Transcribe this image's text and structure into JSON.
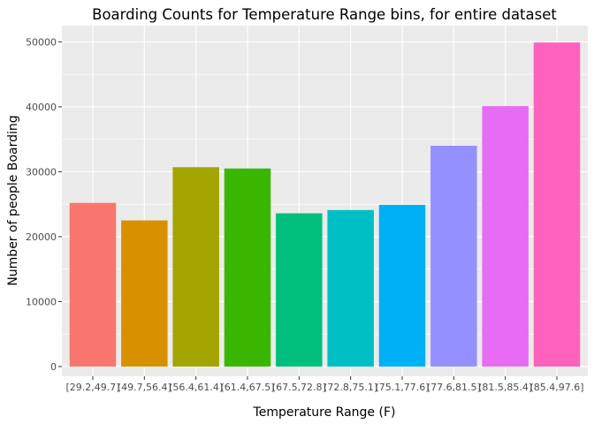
{
  "chart_data": {
    "type": "bar",
    "title": "Boarding Counts for Temperature Range bins, for entire dataset",
    "xlabel": "Temperature Range (F)",
    "ylabel": "Number of people Boarding",
    "categories": [
      "[29.2,49.7]",
      "(49.7,56.4]",
      "(56.4,61.4]",
      "(61.4,67.5]",
      "(67.5,72.8]",
      "(72.8,75.1]",
      "(75.1,77.6]",
      "(77.6,81.5]",
      "(81.5,85.4]",
      "(85.4,97.6]"
    ],
    "values": [
      25200,
      22500,
      30700,
      30500,
      23600,
      24100,
      24900,
      34000,
      40100,
      49900
    ],
    "colors": [
      "#F8766D",
      "#D89000",
      "#A3A500",
      "#39B600",
      "#00BF7D",
      "#00BFC4",
      "#00B0F6",
      "#9590FF",
      "#E76BF3",
      "#FF62BC"
    ],
    "ylim": [
      -1500,
      52500
    ],
    "yticks": [
      0,
      10000,
      20000,
      30000,
      40000,
      50000
    ],
    "grid": true,
    "legend": "none",
    "panel_background": "#EBEBEB"
  }
}
